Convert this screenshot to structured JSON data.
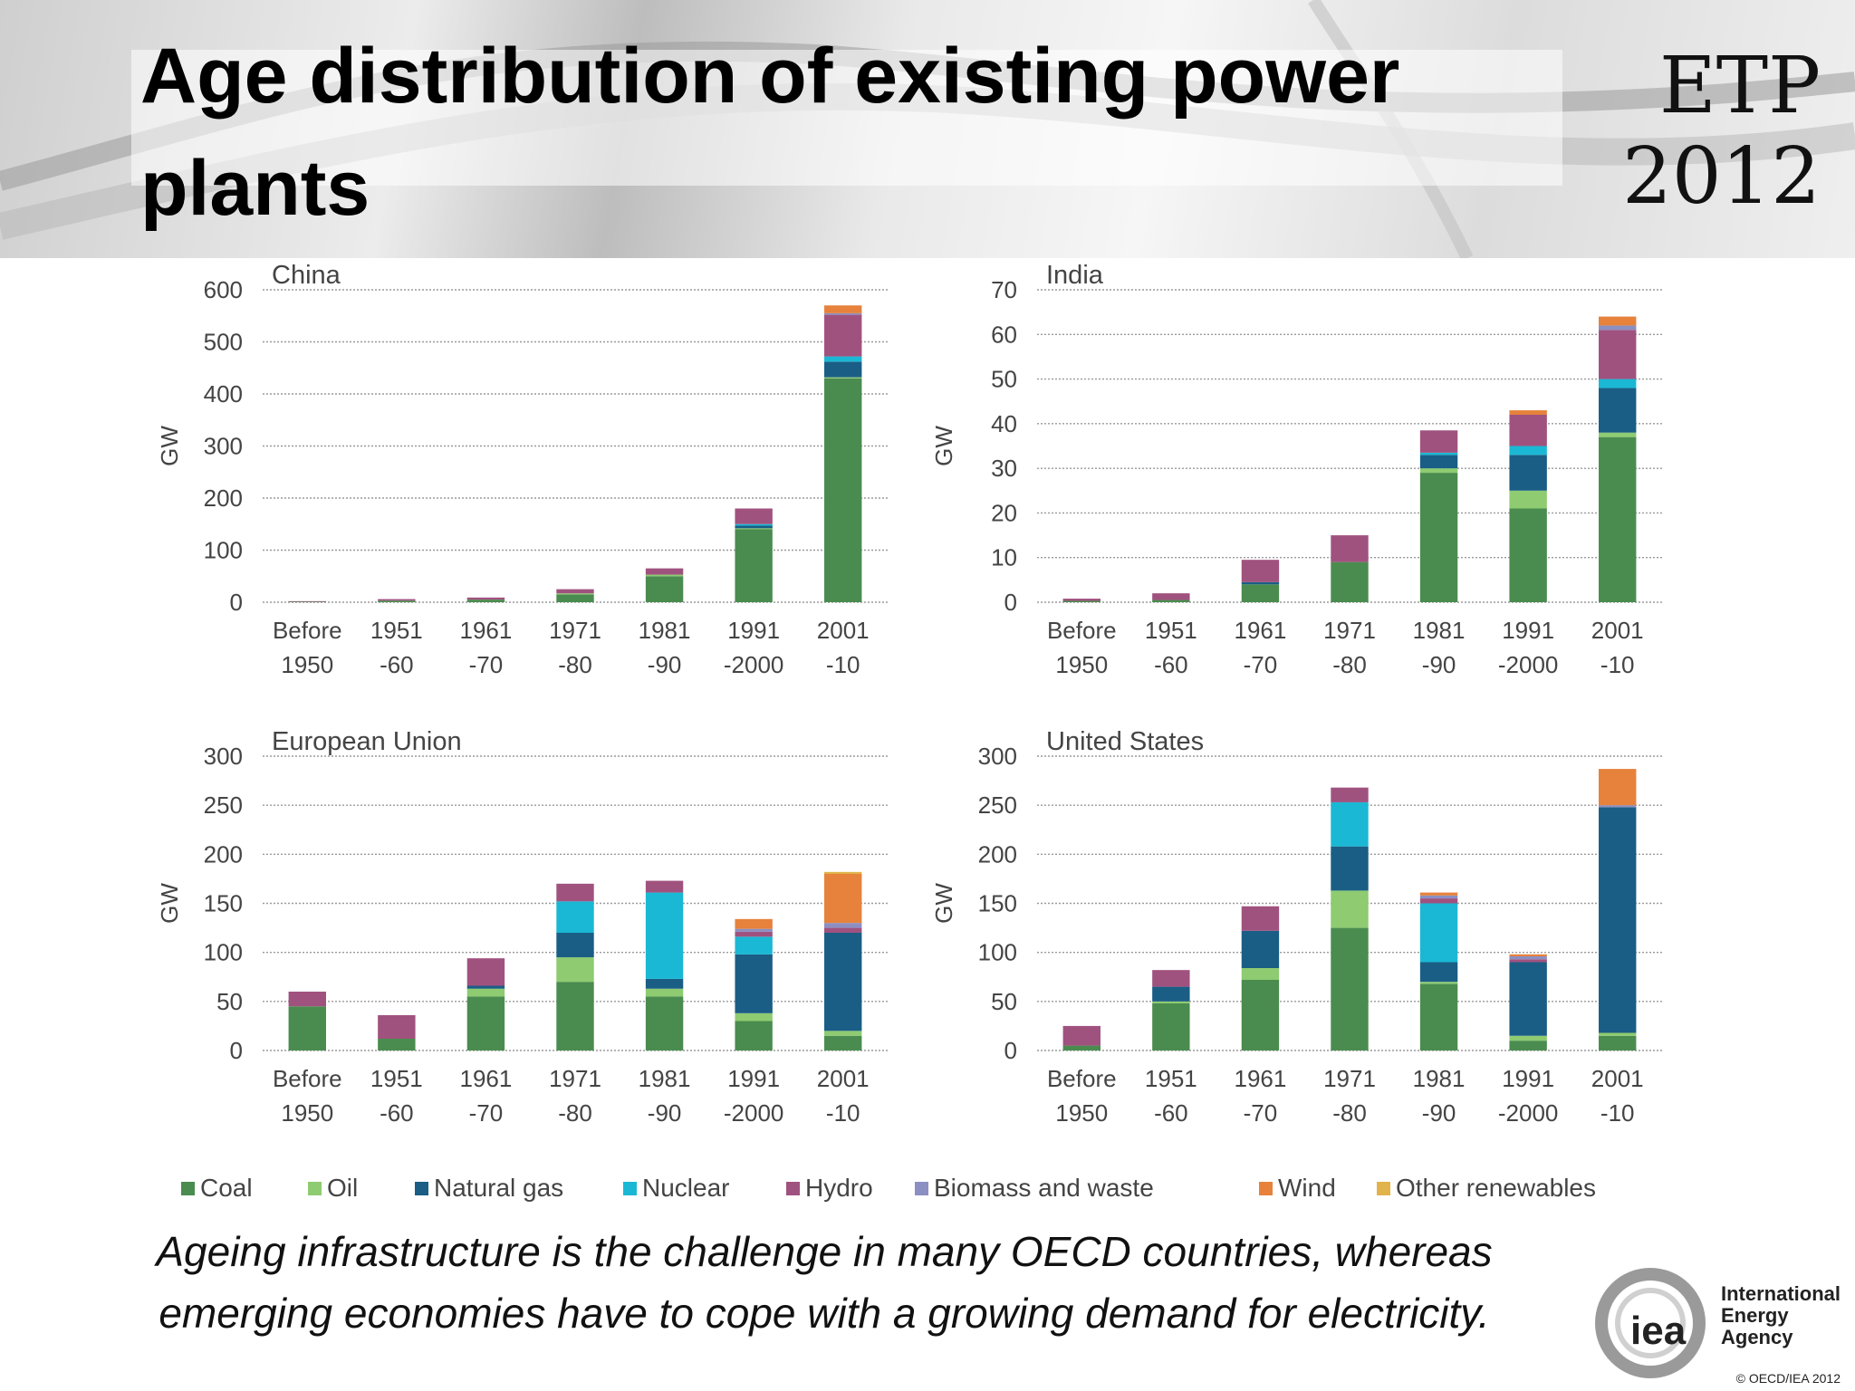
{
  "slide": {
    "title": "Age distribution of existing power plants",
    "logo_line1": "ETP",
    "logo_line2": "2012",
    "caption_line1": "Ageing infrastructure is the challenge in many OECD countries, whereas",
    "caption_line2": "emerging economies have to cope with a growing demand for electricity.",
    "iea_word": "iea",
    "iea_name_line1": "International",
    "iea_name_line2": "Energy Agency",
    "copyright": "© OECD/IEA 2012"
  },
  "legend": [
    {
      "name": "Coal",
      "color": "#4a8c4f"
    },
    {
      "name": "Oil",
      "color": "#8ecb71"
    },
    {
      "name": "Natural gas",
      "color": "#1a5e85"
    },
    {
      "name": "Nuclear",
      "color": "#1ab8d4"
    },
    {
      "name": "Hydro",
      "color": "#a0527f"
    },
    {
      "name": "Biomass and waste",
      "color": "#8c8fc2"
    },
    {
      "name": "Wind",
      "color": "#e6823c"
    },
    {
      "name": "Other renewables",
      "color": "#e0b44a"
    }
  ],
  "chart_data": [
    {
      "type": "bar",
      "stacked": true,
      "title": "China",
      "ylabel": "GW",
      "ylim": [
        0,
        600
      ],
      "yticks": [
        0,
        100,
        200,
        300,
        400,
        500,
        600
      ],
      "grid": true,
      "categories": [
        [
          "Before",
          "1950"
        ],
        [
          "1951",
          "-60"
        ],
        [
          "1961",
          "-70"
        ],
        [
          "1971",
          "-80"
        ],
        [
          "1981",
          "-90"
        ],
        [
          "1991",
          "-2000"
        ],
        [
          "2001",
          "-10"
        ]
      ],
      "series": [
        {
          "name": "Coal",
          "values": [
            1,
            3,
            5,
            15,
            50,
            140,
            430
          ]
        },
        {
          "name": "Oil",
          "values": [
            0,
            0,
            0,
            2,
            3,
            2,
            2
          ]
        },
        {
          "name": "Natural gas",
          "values": [
            0,
            0,
            0,
            0,
            0,
            5,
            30
          ]
        },
        {
          "name": "Nuclear",
          "values": [
            0,
            0,
            0,
            0,
            0,
            3,
            10
          ]
        },
        {
          "name": "Hydro",
          "values": [
            1,
            3,
            4,
            8,
            12,
            30,
            80
          ]
        },
        {
          "name": "Biomass and waste",
          "values": [
            0,
            0,
            0,
            0,
            0,
            0,
            3
          ]
        },
        {
          "name": "Wind",
          "values": [
            0,
            0,
            0,
            0,
            0,
            0,
            15
          ]
        },
        {
          "name": "Other renewables",
          "values": [
            0,
            0,
            0,
            0,
            0,
            0,
            0
          ]
        }
      ]
    },
    {
      "type": "bar",
      "stacked": true,
      "title": "India",
      "ylabel": "GW",
      "ylim": [
        0,
        70
      ],
      "yticks": [
        0,
        10,
        20,
        30,
        40,
        50,
        60,
        70
      ],
      "grid": true,
      "categories": [
        [
          "Before",
          "1950"
        ],
        [
          "1951",
          "-60"
        ],
        [
          "1961",
          "-70"
        ],
        [
          "1971",
          "-80"
        ],
        [
          "1981",
          "-90"
        ],
        [
          "1991",
          "-2000"
        ],
        [
          "2001",
          "-10"
        ]
      ],
      "series": [
        {
          "name": "Coal",
          "values": [
            0.3,
            0.5,
            4,
            9,
            29,
            21,
            37
          ]
        },
        {
          "name": "Oil",
          "values": [
            0,
            0,
            0,
            0,
            1,
            4,
            1
          ]
        },
        {
          "name": "Natural gas",
          "values": [
            0,
            0,
            0.5,
            0,
            3,
            8,
            10
          ]
        },
        {
          "name": "Nuclear",
          "values": [
            0,
            0,
            0,
            0,
            0.5,
            2,
            2
          ]
        },
        {
          "name": "Hydro",
          "values": [
            0.5,
            1.5,
            5,
            6,
            5,
            7,
            11
          ]
        },
        {
          "name": "Biomass and waste",
          "values": [
            0,
            0,
            0,
            0,
            0,
            0,
            1
          ]
        },
        {
          "name": "Wind",
          "values": [
            0,
            0,
            0,
            0,
            0,
            1,
            2
          ]
        },
        {
          "name": "Other renewables",
          "values": [
            0,
            0,
            0,
            0,
            0,
            0,
            0
          ]
        }
      ]
    },
    {
      "type": "bar",
      "stacked": true,
      "title": "European Union",
      "ylabel": "GW",
      "ylim": [
        0,
        300
      ],
      "yticks": [
        0,
        50,
        100,
        150,
        200,
        250,
        300
      ],
      "grid": true,
      "categories": [
        [
          "Before",
          "1950"
        ],
        [
          "1951",
          "-60"
        ],
        [
          "1961",
          "-70"
        ],
        [
          "1971",
          "-80"
        ],
        [
          "1981",
          "-90"
        ],
        [
          "1991",
          "-2000"
        ],
        [
          "2001",
          "-10"
        ]
      ],
      "series": [
        {
          "name": "Coal",
          "values": [
            45,
            12,
            55,
            70,
            55,
            30,
            15
          ]
        },
        {
          "name": "Oil",
          "values": [
            0,
            0,
            8,
            25,
            8,
            8,
            5
          ]
        },
        {
          "name": "Natural gas",
          "values": [
            0,
            0,
            3,
            25,
            10,
            60,
            100
          ]
        },
        {
          "name": "Nuclear",
          "values": [
            0,
            0,
            0,
            32,
            88,
            18,
            0
          ]
        },
        {
          "name": "Hydro",
          "values": [
            15,
            24,
            28,
            18,
            12,
            5,
            5
          ]
        },
        {
          "name": "Biomass and waste",
          "values": [
            0,
            0,
            0,
            0,
            0,
            3,
            5
          ]
        },
        {
          "name": "Wind",
          "values": [
            0,
            0,
            0,
            0,
            0,
            10,
            50
          ]
        },
        {
          "name": "Other renewables",
          "values": [
            0,
            0,
            0,
            0,
            0,
            0,
            2
          ]
        }
      ]
    },
    {
      "type": "bar",
      "stacked": true,
      "title": "United States",
      "ylabel": "GW",
      "ylim": [
        0,
        300
      ],
      "yticks": [
        0,
        50,
        100,
        150,
        200,
        250,
        300
      ],
      "grid": true,
      "categories": [
        [
          "Before",
          "1950"
        ],
        [
          "1951",
          "-60"
        ],
        [
          "1961",
          "-70"
        ],
        [
          "1971",
          "-80"
        ],
        [
          "1981",
          "-90"
        ],
        [
          "1991",
          "-2000"
        ],
        [
          "2001",
          "-10"
        ]
      ],
      "series": [
        {
          "name": "Coal",
          "values": [
            5,
            48,
            72,
            125,
            68,
            10,
            15
          ]
        },
        {
          "name": "Oil",
          "values": [
            0,
            2,
            12,
            38,
            2,
            5,
            3
          ]
        },
        {
          "name": "Natural gas",
          "values": [
            0,
            15,
            38,
            45,
            20,
            75,
            230
          ]
        },
        {
          "name": "Nuclear",
          "values": [
            0,
            0,
            0,
            45,
            60,
            0,
            0
          ]
        },
        {
          "name": "Hydro",
          "values": [
            20,
            17,
            25,
            15,
            5,
            3,
            0
          ]
        },
        {
          "name": "Biomass and waste",
          "values": [
            0,
            0,
            0,
            0,
            3,
            3,
            2
          ]
        },
        {
          "name": "Wind",
          "values": [
            0,
            0,
            0,
            0,
            3,
            2,
            37
          ]
        },
        {
          "name": "Other renewables",
          "values": [
            0,
            0,
            0,
            0,
            0,
            0,
            0
          ]
        }
      ]
    }
  ]
}
